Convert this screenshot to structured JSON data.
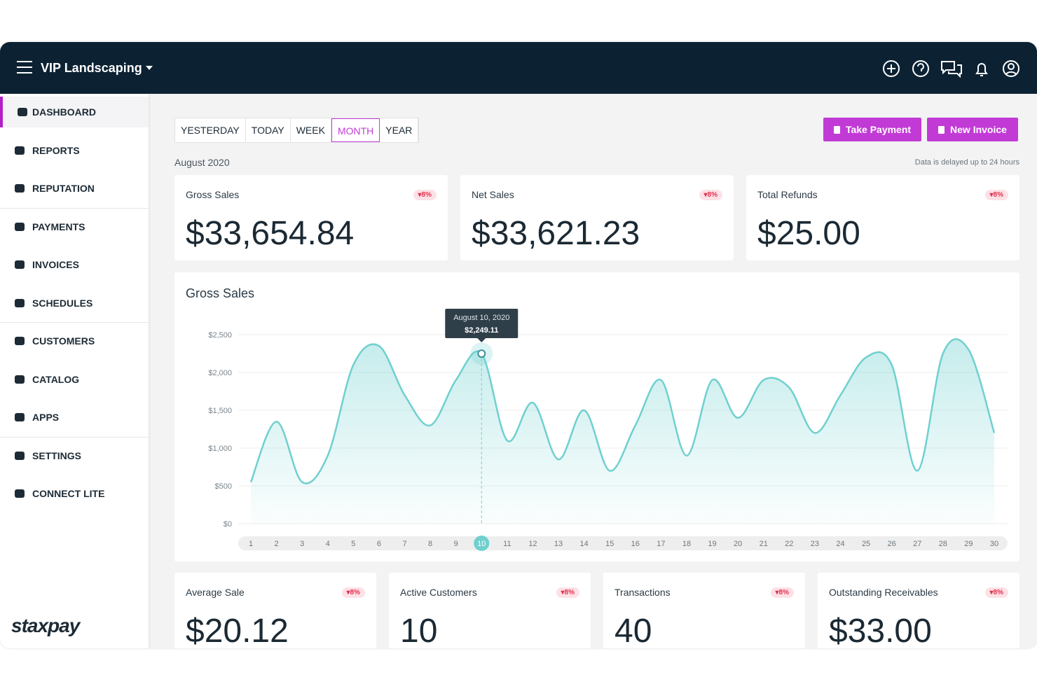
{
  "header": {
    "business": "VIP Landscaping"
  },
  "sidebar": {
    "groups": [
      [
        "DASHBOARD",
        "REPORTS",
        "REPUTATION"
      ],
      [
        "PAYMENTS",
        "INVOICES",
        "SCHEDULES"
      ],
      [
        "CUSTOMERS",
        "CATALOG",
        "APPS"
      ],
      [
        "SETTINGS",
        "CONNECT LITE"
      ]
    ],
    "active": "DASHBOARD",
    "brand": "staxpay"
  },
  "tabs": {
    "items": [
      "YESTERDAY",
      "TODAY",
      "WEEK",
      "MONTH",
      "YEAR"
    ],
    "active": "MONTH"
  },
  "buttons": [
    "Take Payment",
    "New Invoice"
  ],
  "period": "August 2020",
  "notice": "Data is delayed up to 24 hours",
  "top_cards": [
    {
      "title": "Gross Sales",
      "badge": "8%",
      "value": "$33,654.84"
    },
    {
      "title": "Net Sales",
      "badge": "8%",
      "value": "$33,621.23"
    },
    {
      "title": "Total Refunds",
      "badge": "8%",
      "value": "$25.00"
    }
  ],
  "chart": {
    "type": "area",
    "title": "Gross Sales",
    "color": "#6fd0cf",
    "x": [
      1,
      2,
      3,
      4,
      5,
      6,
      7,
      8,
      9,
      10,
      11,
      12,
      13,
      14,
      15,
      16,
      17,
      18,
      19,
      20,
      21,
      22,
      23,
      24,
      25,
      26,
      27,
      28,
      29,
      30
    ],
    "values": [
      550,
      1350,
      550,
      900,
      2100,
      2350,
      1700,
      1300,
      1900,
      2249.11,
      1100,
      1600,
      850,
      1500,
      700,
      1300,
      1900,
      900,
      1900,
      1400,
      1900,
      1800,
      1200,
      1700,
      2200,
      2100,
      700,
      2250,
      2300,
      1200
    ],
    "ylim": [
      0,
      2500
    ],
    "yticks": [
      {
        "value": 0,
        "label": "$0"
      },
      {
        "value": 500,
        "label": "$500"
      },
      {
        "value": 1000,
        "label": "$1,000"
      },
      {
        "value": 1500,
        "label": "$1,500"
      },
      {
        "value": 2000,
        "label": "$2,000"
      },
      {
        "value": 2500,
        "label": "$2,500"
      }
    ],
    "grid": true,
    "tooltip": {
      "title": "August 10, 2020",
      "label": "$2,249.11"
    }
  },
  "bottom_cards": [
    {
      "title": "Average Sale",
      "badge": "8%",
      "value": "$20.12"
    },
    {
      "title": "Active Customers",
      "badge": "8%",
      "value": "10"
    },
    {
      "title": "Transactions",
      "badge": "8%",
      "value": "40"
    },
    {
      "title": "Outstanding Receivables",
      "badge": "8%",
      "value": "$33.00"
    }
  ]
}
